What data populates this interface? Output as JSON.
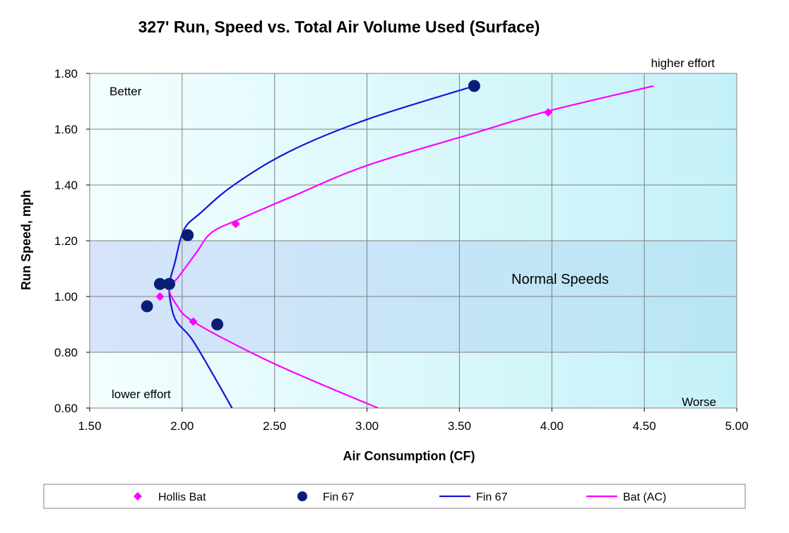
{
  "chart_data": {
    "type": "scatter",
    "title": "327' Run, Speed vs. Total Air Volume Used (Surface)",
    "xlabel": "Air Consumption (CF)",
    "ylabel": "Run Speed, mph",
    "xlim": [
      1.5,
      5.0
    ],
    "ylim": [
      0.6,
      1.8
    ],
    "x_ticks": [
      1.5,
      2.0,
      2.5,
      3.0,
      3.5,
      4.0,
      4.5,
      5.0
    ],
    "y_ticks": [
      0.6,
      0.8,
      1.0,
      1.2,
      1.4,
      1.6,
      1.8
    ],
    "x_tick_labels": [
      "1.50",
      "2.00",
      "2.50",
      "3.00",
      "3.50",
      "4.00",
      "4.50",
      "5.00"
    ],
    "y_tick_labels": [
      "0.60",
      "0.80",
      "1.00",
      "1.20",
      "1.40",
      "1.60",
      "1.80"
    ],
    "grid": true,
    "legend_position": "bottom",
    "normal_speed_band": [
      0.8,
      1.2
    ],
    "annotations": {
      "better": "Better",
      "worse": "Worse",
      "higher_effort": "higher effort",
      "lower_effort": "lower effort",
      "normal_speeds": "Normal Speeds"
    },
    "series": [
      {
        "name": "Hollis Bat",
        "kind": "marker",
        "marker": "diamond",
        "color": "#ff00ff",
        "points": [
          [
            1.88,
            1.0
          ],
          [
            2.06,
            0.91
          ],
          [
            2.29,
            1.26
          ],
          [
            3.98,
            1.66
          ]
        ]
      },
      {
        "name": "Fin 67",
        "kind": "marker",
        "marker": "circle",
        "color": "#0a1e78",
        "points": [
          [
            1.81,
            0.965
          ],
          [
            1.88,
            1.045
          ],
          [
            1.93,
            1.045
          ],
          [
            2.03,
            1.22
          ],
          [
            2.19,
            0.9
          ],
          [
            3.58,
            1.755
          ]
        ]
      },
      {
        "name": "Fin 67",
        "kind": "line",
        "color": "#1414d7",
        "points": [
          [
            2.27,
            0.6
          ],
          [
            2.15,
            0.74
          ],
          [
            2.05,
            0.85
          ],
          [
            1.97,
            0.91
          ],
          [
            1.94,
            0.97
          ],
          [
            1.93,
            1.04
          ],
          [
            1.96,
            1.12
          ],
          [
            2.01,
            1.24
          ],
          [
            2.1,
            1.3
          ],
          [
            2.28,
            1.4
          ],
          [
            2.58,
            1.52
          ],
          [
            3.0,
            1.635
          ],
          [
            3.58,
            1.755
          ]
        ]
      },
      {
        "name": "Bat (AC)",
        "kind": "line",
        "color": "#ff00ff",
        "points": [
          [
            3.06,
            0.6
          ],
          [
            2.7,
            0.7
          ],
          [
            2.4,
            0.79
          ],
          [
            2.06,
            0.91
          ],
          [
            1.97,
            0.97
          ],
          [
            1.93,
            1.03
          ],
          [
            1.98,
            1.07
          ],
          [
            2.08,
            1.16
          ],
          [
            2.16,
            1.23
          ],
          [
            2.32,
            1.28
          ],
          [
            2.6,
            1.36
          ],
          [
            3.0,
            1.47
          ],
          [
            3.6,
            1.59
          ],
          [
            3.98,
            1.665
          ],
          [
            4.55,
            1.755
          ]
        ]
      }
    ]
  }
}
